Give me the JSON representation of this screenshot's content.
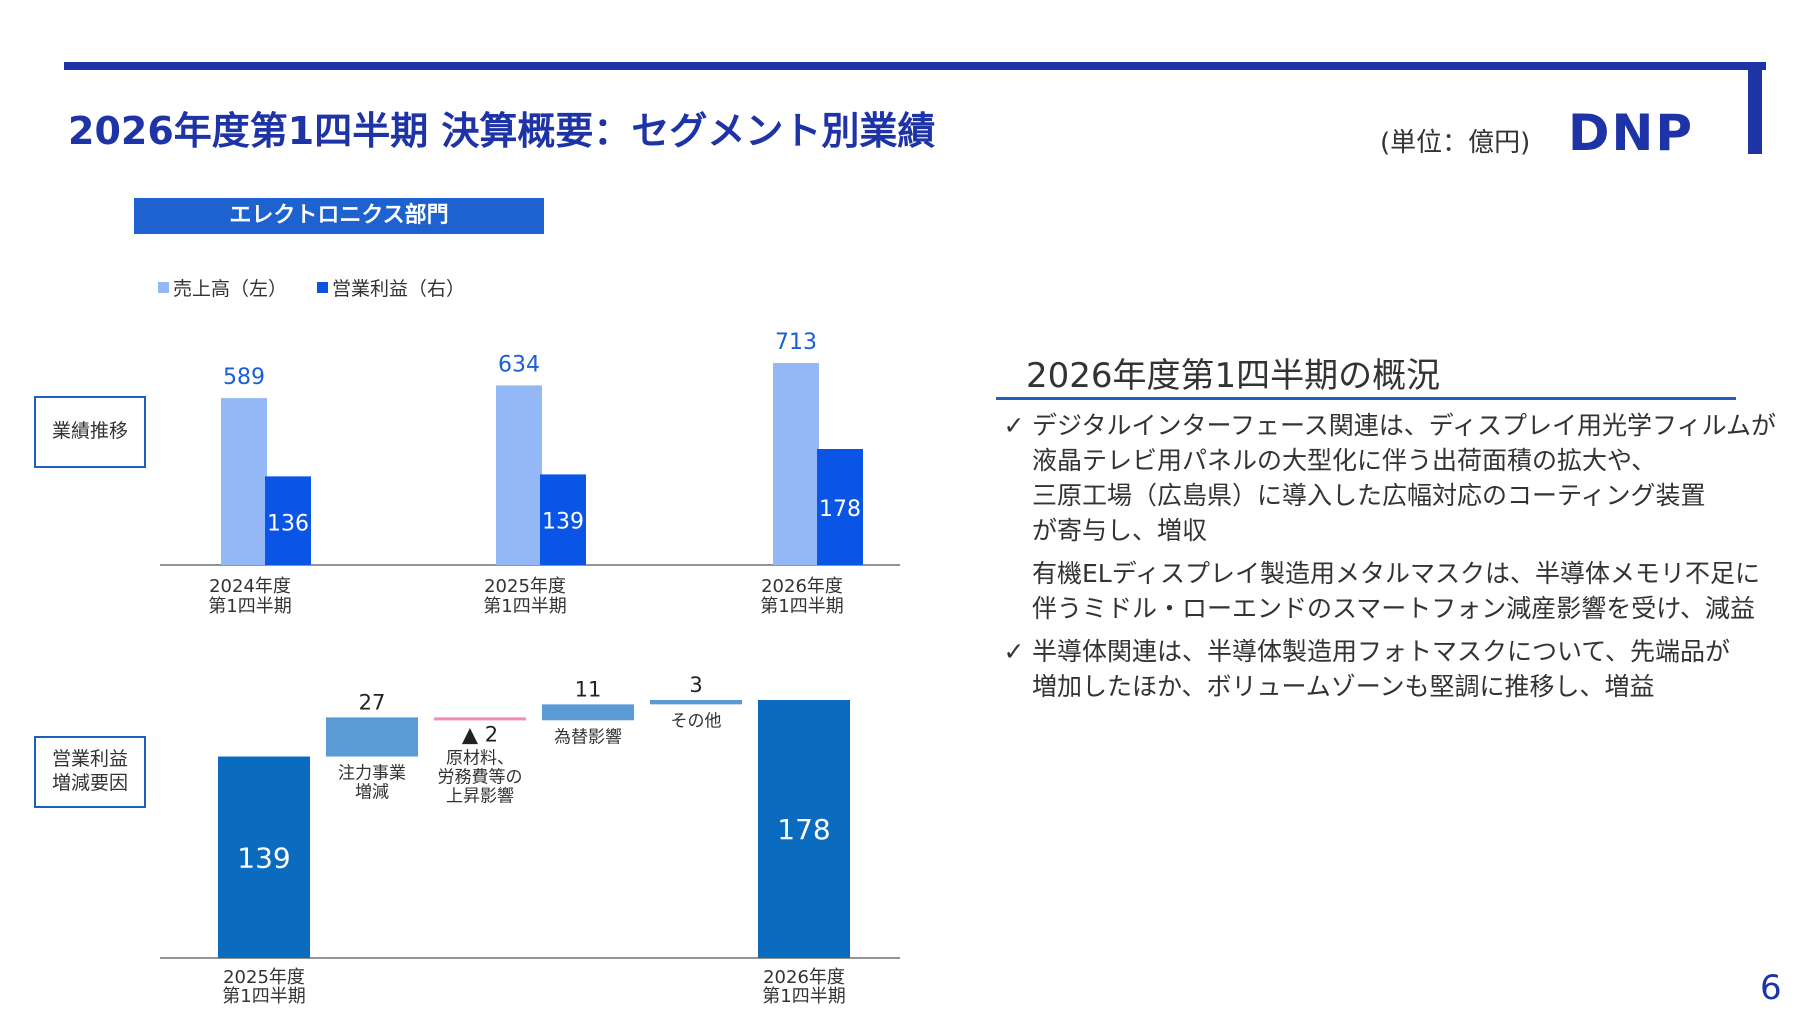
{
  "header": {
    "title": "2026年度第1四半期 決算概要：セグメント別業績",
    "unit": "(単位：億円)",
    "logo": "DNP"
  },
  "segment_label": "エレクトロニクス部門",
  "side_labels": {
    "performance": "業績推移",
    "profit_factors_line1": "営業利益",
    "profit_factors_line2": "増減要因"
  },
  "legend": {
    "sales": "売上高（左）",
    "profit": "営業利益（右）",
    "sales_color": "#94b8f5",
    "profit_color": "#0a55e6"
  },
  "chart_data": [
    {
      "type": "bar",
      "categories": [
        [
          "2024年度",
          "第1四半期"
        ],
        [
          "2025年度",
          "第1四半期"
        ],
        [
          "2026年度",
          "第1四半期"
        ]
      ],
      "series": [
        {
          "name": "売上高（左）",
          "values": [
            589,
            634,
            713
          ],
          "color": "#94b8f5"
        },
        {
          "name": "営業利益（右）",
          "values": [
            136,
            139,
            178
          ],
          "color": "#0a55e6"
        }
      ]
    },
    {
      "type": "bar",
      "subtype": "waterfall",
      "steps": [
        {
          "labels": [
            "2025年度",
            "第1四半期"
          ],
          "value": 139,
          "kind": "total",
          "display": "139"
        },
        {
          "labels": [
            "注力事業",
            "増減"
          ],
          "value": 27,
          "kind": "delta",
          "display": "27"
        },
        {
          "labels": [
            "原材料、",
            "労務費等の",
            "上昇影響"
          ],
          "value": -2,
          "kind": "delta",
          "display": "▲ 2"
        },
        {
          "labels": [
            "為替影響"
          ],
          "value": 11,
          "kind": "delta",
          "display": "11"
        },
        {
          "labels": [
            "その他"
          ],
          "value": 3,
          "kind": "delta",
          "display": "3"
        },
        {
          "labels": [
            "2026年度",
            "第1四半期"
          ],
          "value": 178,
          "kind": "total",
          "display": "178"
        }
      ],
      "colors": {
        "total": "#0b6bbf",
        "increase": "#5b9bd5",
        "decrease": "#f08ab8"
      }
    }
  ],
  "overview": {
    "title": "2026年度第1四半期の概況",
    "bullets": [
      {
        "check": "✓",
        "paragraphs": [
          [
            "デジタルインターフェース関連は、ディスプレイ用光学フィルムが",
            "液晶テレビ用パネルの大型化に伴う出荷面積の拡大や、",
            "三原工場（広島県）に導入した広幅対応のコーティング装置",
            "が寄与し、増収"
          ],
          [
            "有機ELディスプレイ製造用メタルマスクは、半導体メモリ不足に",
            "伴うミドル・ローエンドのスマートフォン減産影響を受け、減益"
          ]
        ]
      },
      {
        "check": "✓",
        "paragraphs": [
          [
            "半導体関連は、半導体製造用フォトマスクについて、先端品が",
            "増加したほか、ボリュームゾーンも堅調に推移し、増益"
          ]
        ]
      }
    ]
  },
  "page_number": "6"
}
